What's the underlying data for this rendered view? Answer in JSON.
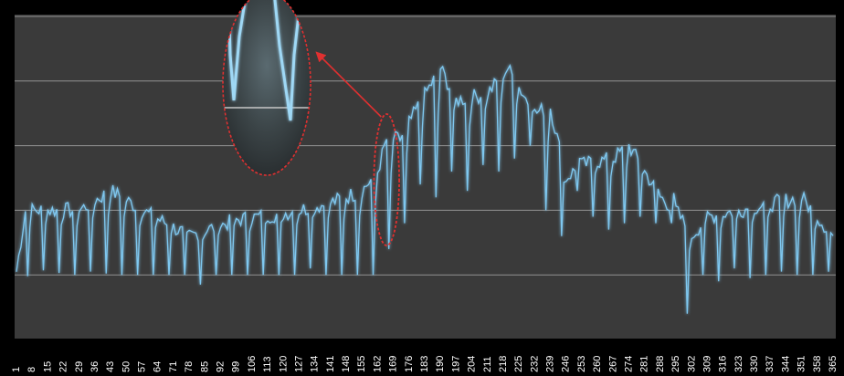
{
  "chart_data": {
    "type": "line",
    "title": "",
    "xlabel": "",
    "ylabel": "",
    "grid": true,
    "legend": "none",
    "colors": {
      "background": "#000000",
      "plot_bg": "#3a3a3a",
      "line": "#7fc8f0",
      "grid": "#b0b0b0",
      "tick_text": "#ffffff",
      "annotation": "#e03030"
    },
    "x_tick_labels": [
      "1",
      "8",
      "15",
      "22",
      "29",
      "36",
      "43",
      "50",
      "57",
      "64",
      "71",
      "78",
      "85",
      "92",
      "99",
      "106",
      "113",
      "120",
      "127",
      "134",
      "141",
      "148",
      "155",
      "162",
      "169",
      "176",
      "183",
      "190",
      "197",
      "204",
      "211",
      "218",
      "225",
      "232",
      "239",
      "246",
      "253",
      "260",
      "267",
      "274",
      "281",
      "288",
      "295",
      "302",
      "309",
      "316",
      "323",
      "330",
      "337",
      "344",
      "351",
      "358",
      "365"
    ],
    "x_range": [
      1,
      365
    ],
    "y_range": [
      0,
      5
    ],
    "y_gridlines": [
      1,
      2,
      3,
      4,
      5
    ],
    "series": [
      {
        "name": "",
        "weekly_profile": [
          {
            "day": 1,
            "value": 1.05
          },
          {
            "day": 5,
            "value": 2.0
          },
          {
            "day": 29,
            "value": 2.0
          },
          {
            "day": 43,
            "value": 2.3
          },
          {
            "day": 48,
            "value": 2.2
          },
          {
            "day": 57,
            "value": 2.0
          },
          {
            "day": 78,
            "value": 1.6
          },
          {
            "day": 99,
            "value": 1.85
          },
          {
            "day": 120,
            "value": 1.95
          },
          {
            "day": 140,
            "value": 2.1
          },
          {
            "day": 155,
            "value": 2.3
          },
          {
            "day": 162,
            "value": 2.6
          },
          {
            "day": 166,
            "value": 3.1
          },
          {
            "day": 172,
            "value": 3.1
          },
          {
            "day": 180,
            "value": 3.6
          },
          {
            "day": 190,
            "value": 4.2
          },
          {
            "day": 197,
            "value": 3.7
          },
          {
            "day": 211,
            "value": 3.8
          },
          {
            "day": 220,
            "value": 4.2
          },
          {
            "day": 232,
            "value": 3.5
          },
          {
            "day": 239,
            "value": 3.6
          },
          {
            "day": 246,
            "value": 2.5
          },
          {
            "day": 253,
            "value": 2.7
          },
          {
            "day": 267,
            "value": 2.8
          },
          {
            "day": 274,
            "value": 3.0
          },
          {
            "day": 281,
            "value": 2.6
          },
          {
            "day": 288,
            "value": 2.2
          },
          {
            "day": 295,
            "value": 2.0
          },
          {
            "day": 302,
            "value": 1.6
          },
          {
            "day": 309,
            "value": 1.9
          },
          {
            "day": 323,
            "value": 2.0
          },
          {
            "day": 337,
            "value": 2.1
          },
          {
            "day": 351,
            "value": 2.2
          },
          {
            "day": 365,
            "value": 1.6
          }
        ],
        "weekly_dips": [
          0.98,
          1.07,
          1.03,
          1.0,
          1.05,
          1.02,
          1.0,
          1.0,
          1.0,
          1.0,
          1.0,
          0.85,
          1.0,
          1.0,
          1.0,
          1.0,
          1.0,
          1.0,
          1.1,
          1.0,
          1.0,
          1.0,
          1.0,
          1.4,
          1.8,
          2.4,
          2.2,
          2.6,
          2.3,
          2.7,
          2.6,
          2.8,
          3.0,
          2.0,
          1.6,
          2.3,
          1.9,
          1.7,
          1.8,
          1.9,
          1.8,
          1.8,
          0.4,
          1.0,
          0.9,
          1.1,
          0.95,
          1.0,
          1.05,
          1.0,
          1.0,
          1.05,
          1.0
        ]
      }
    ],
    "annotations": [
      {
        "type": "ellipse-highlight",
        "x_range": [
          162,
          170
        ]
      },
      {
        "type": "zoom-inset"
      }
    ]
  }
}
